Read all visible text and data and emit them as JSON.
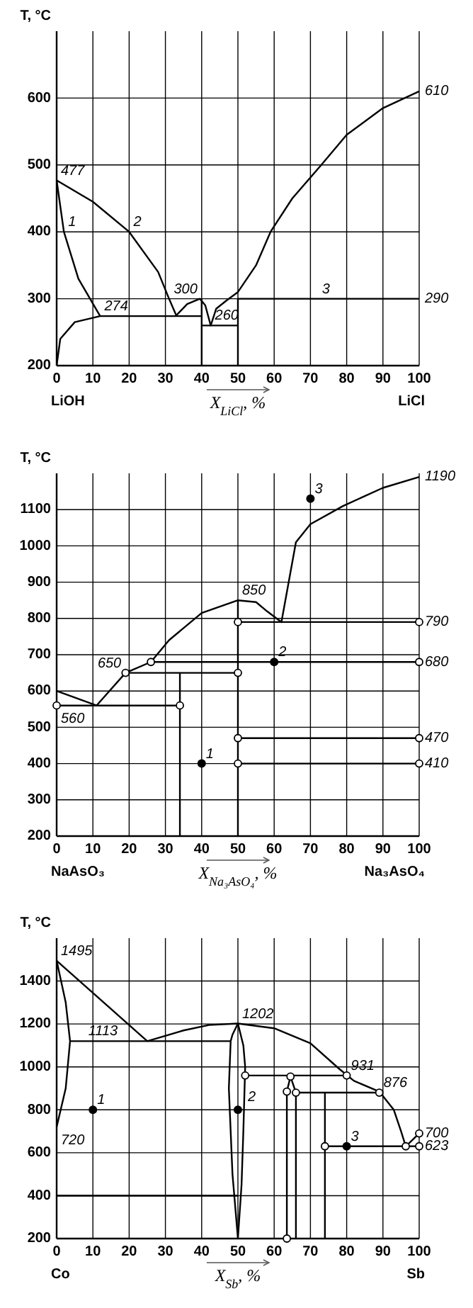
{
  "chart_data": [
    {
      "type": "line",
      "ylabel": "T, °C",
      "xlabel": "X$_{LiCl}$, %",
      "xlim": [
        0,
        100
      ],
      "ylim": [
        200,
        700
      ],
      "xticks": [
        0,
        10,
        20,
        30,
        40,
        50,
        60,
        70,
        80,
        90,
        100
      ],
      "yticks": [
        200,
        300,
        400,
        500,
        600
      ],
      "grid": true,
      "series": [
        {
          "color": "#000000",
          "x": [
            0,
            10,
            20,
            28,
            31,
            33
          ],
          "values": [
            477,
            445,
            400,
            340,
            300,
            275
          ]
        },
        {
          "color": "#000000",
          "x": [
            0,
            2,
            6,
            12
          ],
          "values": [
            477,
            400,
            330,
            274
          ]
        },
        {
          "color": "#000000",
          "x": [
            0,
            1,
            5,
            12,
            40
          ],
          "values": [
            200,
            240,
            265,
            274,
            274
          ]
        },
        {
          "color": "#000000",
          "x": [
            33,
            36,
            39.5,
            41,
            42.5,
            44,
            47,
            50,
            55,
            59,
            65,
            73,
            80,
            90,
            100
          ],
          "values": [
            275,
            292,
            300,
            290,
            260,
            285,
            298,
            310,
            350,
            400,
            450,
            500,
            545,
            585,
            610
          ]
        },
        {
          "color": "#000000",
          "x": [
            40,
            40
          ],
          "values": [
            200,
            300
          ]
        },
        {
          "color": "#000000",
          "x": [
            40,
            50
          ],
          "values": [
            260,
            260
          ]
        },
        {
          "color": "#000000",
          "x": [
            50,
            50,
            100
          ],
          "values": [
            200,
            300,
            300
          ]
        }
      ],
      "annotations": [
        {
          "text": "477",
          "x": 0,
          "y": 477
        },
        {
          "text": "274",
          "x": 12,
          "y": 274
        },
        {
          "text": "300",
          "x": 40,
          "y": 300
        },
        {
          "text": "260",
          "x": 42.5,
          "y": 260
        },
        {
          "text": "290",
          "x": 100,
          "y": 300
        },
        {
          "text": "610",
          "x": 100,
          "y": 610
        },
        {
          "text": "1",
          "x": 2,
          "y": 400
        },
        {
          "text": "2",
          "x": 20,
          "y": 400
        },
        {
          "text": "3",
          "x": 72,
          "y": 300
        },
        "LiOH",
        "LiCl"
      ]
    },
    {
      "type": "line",
      "ylabel": "T, °C",
      "xlabel": "X$_{Na₃AsO₄}$, %",
      "xlim": [
        0,
        100
      ],
      "ylim": [
        200,
        1200
      ],
      "xticks": [
        0,
        10,
        20,
        30,
        40,
        50,
        60,
        70,
        80,
        90,
        100
      ],
      "yticks": [
        200,
        300,
        400,
        500,
        600,
        700,
        800,
        900,
        1000,
        1100
      ],
      "grid": true,
      "series": [
        {
          "color": "#000000",
          "x": [
            0,
            11,
            19,
            26,
            31,
            40,
            50,
            55,
            58,
            62,
            66,
            70,
            79,
            90,
            100
          ],
          "values": [
            600,
            560,
            650,
            680,
            740,
            815,
            850,
            845,
            820,
            790,
            1010,
            1060,
            1110,
            1160,
            1190
          ]
        },
        {
          "color": "#000000",
          "marker": "circle",
          "x": [
            0,
            34
          ],
          "values": [
            560,
            560
          ]
        },
        {
          "color": "#000000",
          "x": [
            34,
            34
          ],
          "values": [
            200,
            650
          ]
        },
        {
          "color": "#000000",
          "marker": "circle",
          "x": [
            19,
            50
          ],
          "values": [
            650,
            650
          ]
        },
        {
          "color": "#000000",
          "marker": "circle",
          "x": [
            26,
            100
          ],
          "values": [
            680,
            680
          ]
        },
        {
          "color": "#000000",
          "x": [
            50,
            50
          ],
          "values": [
            200,
            850
          ]
        },
        {
          "color": "#000000",
          "marker": "circle",
          "x": [
            50,
            100
          ],
          "values": [
            790,
            790
          ]
        },
        {
          "color": "#000000",
          "marker": "circle",
          "x": [
            50,
            100
          ],
          "values": [
            470,
            470
          ]
        },
        {
          "color": "#000000",
          "marker": "circle",
          "x": [
            50,
            100
          ],
          "values": [
            400,
            400
          ]
        },
        {
          "type": "scatter",
          "color": "#000000",
          "x": [
            40,
            60,
            70
          ],
          "values": [
            400,
            680,
            1130
          ]
        }
      ],
      "annotations": [
        {
          "text": "850",
          "x": 50,
          "y": 850
        },
        {
          "text": "650",
          "x": 19,
          "y": 650
        },
        {
          "text": "560",
          "x": 0,
          "y": 560
        },
        {
          "text": "1190",
          "x": 100,
          "y": 1190
        },
        {
          "text": "790",
          "x": 100,
          "y": 790
        },
        {
          "text": "680",
          "x": 100,
          "y": 680
        },
        {
          "text": "470",
          "x": 100,
          "y": 470
        },
        {
          "text": "410",
          "x": 100,
          "y": 400
        },
        {
          "text": "1",
          "x": 40,
          "y": 400
        },
        {
          "text": "2",
          "x": 60,
          "y": 680
        },
        {
          "text": "3",
          "x": 70,
          "y": 1130
        },
        "NaAsO₃",
        "Na₃AsO₄"
      ]
    },
    {
      "type": "line",
      "ylabel": "T, °C",
      "xlabel": "X$_{Sb}$, %",
      "xlim": [
        0,
        100
      ],
      "ylim": [
        200,
        1600
      ],
      "xticks": [
        0,
        10,
        20,
        30,
        40,
        50,
        60,
        70,
        80,
        90,
        100
      ],
      "yticks": [
        200,
        400,
        600,
        800,
        1000,
        1200,
        1400
      ],
      "grid": true,
      "series": [
        {
          "color": "#000000",
          "x": [
            0,
            25
          ],
          "values": [
            1495,
            1120
          ]
        },
        {
          "color": "#000000",
          "x": [
            25,
            35,
            42,
            50,
            60,
            70,
            78,
            82,
            89,
            93,
            95,
            96.3
          ],
          "values": [
            1120,
            1170,
            1195,
            1202,
            1180,
            1110,
            990,
            935,
            885,
            800,
            700,
            630
          ]
        },
        {
          "color": "#000000",
          "x": [
            0,
            2.5,
            3.7,
            2.5,
            0
          ],
          "values": [
            1495,
            1300,
            1120,
            900,
            720
          ]
        },
        {
          "color": "#000000",
          "x": [
            3.7,
            48
          ],
          "values": [
            1120,
            1120
          ]
        },
        {
          "color": "#000000",
          "x": [
            50,
            48.5,
            48,
            47.5,
            48.5,
            50
          ],
          "values": [
            1202,
            1150,
            1120,
            900,
            500,
            200
          ]
        },
        {
          "color": "#000000",
          "x": [
            50,
            51.5,
            52,
            51.5,
            51,
            50
          ],
          "values": [
            1202,
            1100,
            1000,
            700,
            450,
            200
          ]
        },
        {
          "color": "#000000",
          "marker": "circle",
          "x": [
            52,
            80
          ],
          "values": [
            960,
            960
          ]
        },
        {
          "color": "#000000",
          "marker": "circle",
          "x": [
            63.5,
            63.5,
            64.5,
            66,
            89
          ],
          "values": [
            200,
            885,
            955,
            880,
            880
          ]
        },
        {
          "color": "#000000",
          "x": [
            66,
            66
          ],
          "values": [
            200,
            880
          ]
        },
        {
          "color": "#000000",
          "x": [
            74,
            74
          ],
          "values": [
            200,
            880
          ]
        },
        {
          "color": "#000000",
          "marker": "circle",
          "x": [
            74,
            100
          ],
          "values": [
            630,
            630
          ]
        },
        {
          "color": "#000000",
          "marker": "circle",
          "x": [
            96.3,
            100
          ],
          "values": [
            630,
            690
          ]
        },
        {
          "color": "#000000",
          "x": [
            0,
            50
          ],
          "values": [
            400,
            400
          ]
        },
        {
          "type": "scatter",
          "color": "#000000",
          "x": [
            10,
            50,
            80
          ],
          "values": [
            800,
            800,
            630
          ]
        }
      ],
      "annotations": [
        {
          "text": "1495",
          "x": 0,
          "y": 1495
        },
        {
          "text": "720",
          "x": 0,
          "y": 720
        },
        {
          "text": "1113",
          "x": 18,
          "y": 1120
        },
        {
          "text": "1202",
          "x": 50,
          "y": 1202
        },
        {
          "text": "931",
          "x": 80,
          "y": 960
        },
        {
          "text": "876",
          "x": 89,
          "y": 880
        },
        {
          "text": "700",
          "x": 100,
          "y": 690
        },
        {
          "text": "623",
          "x": 100,
          "y": 630
        },
        {
          "text": "1",
          "x": 10,
          "y": 800
        },
        {
          "text": "2",
          "x": 50,
          "y": 800
        },
        {
          "text": "3",
          "x": 80,
          "y": 630
        },
        "Co",
        "Sb"
      ]
    }
  ]
}
